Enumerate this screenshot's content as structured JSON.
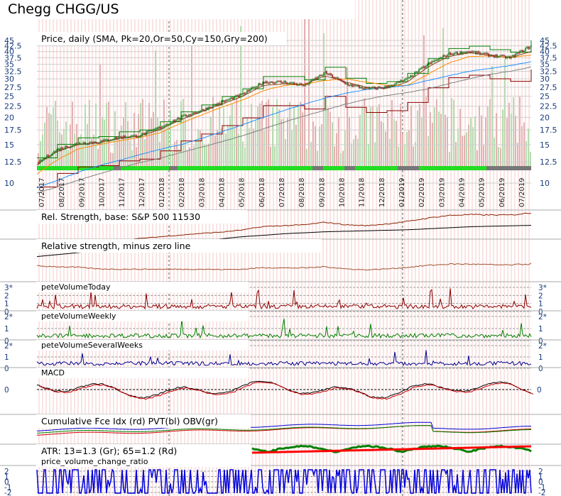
{
  "title": "Chegg CHGG/US",
  "panels": {
    "price_label": "Price, daily (SMA, Pk=20,Or=50,Cy=150,Gry=200)",
    "rs_label": "Rel. Strength, base: S&P 500 11530",
    "rs_zero_label": "Relative strength, minus zero line",
    "vol_today_label": "peteVolumeToday",
    "vol_weekly_label": "peteVolumeWeekly",
    "vol_several_label": "peteVolumeSeveralWeeks",
    "macd_label": "MACD",
    "cum_label": "Cumulative Fce Idx (rd) PVT(bl) OBV(gr)",
    "atr_label": "ATR: 13=1.3 (Gr); 65=1.2 (Rd)",
    "pvcr_label": "price_volume_change_ratio"
  },
  "colors": {
    "price_up": "#1a7a1a",
    "price_down": "#8b1a1a",
    "sma20": "#8b4513",
    "sma50": "#ff8c00",
    "sma150": "#1e90ff",
    "sma200": "#808080",
    "channel_hi": "#008000",
    "channel_lo": "#8b0000",
    "rs": "#8b2500",
    "rs_zero": "#a0522d",
    "vol_today": "#8b0000",
    "vol_weekly": "#008000",
    "vol_several": "#00008b",
    "macd": "#000000",
    "macd_signal": "#cc0000",
    "cum_fce": "#cc0000",
    "cum_pvt": "#0000cc",
    "cum_obv": "#008000",
    "atr13": "#008000",
    "atr65": "#ff0000",
    "pvcr": "#0000dd",
    "axis_text": "#1a3a7a",
    "grid_pink": "#f4c8c8"
  },
  "chart_data": {
    "type": "line",
    "symbol": "CHGG/US",
    "x_ticks": [
      "07/2017",
      "08/2017",
      "09/2017",
      "10/2017",
      "11/2017",
      "12/2017",
      "01/2018",
      "02/2018",
      "03/2018",
      "04/2018",
      "05/2018",
      "06/2018",
      "07/2018",
      "08/2018",
      "09/2018",
      "10/2018",
      "11/2018",
      "12/2018",
      "01/2019",
      "02/2019",
      "03/2019",
      "04/2019",
      "05/2019",
      "06/2019",
      "07/2019"
    ],
    "price_axis": {
      "scale": "log",
      "ylim": [
        10,
        45
      ],
      "ticks": [
        "45",
        "42.5",
        "40",
        "37.5",
        "35",
        "32.5",
        "30",
        "27.5",
        "25",
        "22.5",
        "20",
        "17.5",
        "15",
        "12.5",
        "10"
      ]
    },
    "series": [
      {
        "name": "Price",
        "x": [
          "07/2017",
          "08/2017",
          "09/2017",
          "10/2017",
          "11/2017",
          "12/2017",
          "01/2018",
          "02/2018",
          "03/2018",
          "04/2018",
          "05/2018",
          "06/2018",
          "07/2018",
          "08/2018",
          "09/2018",
          "10/2018",
          "11/2018",
          "12/2018",
          "01/2019",
          "02/2019",
          "03/2019",
          "04/2019",
          "05/2019",
          "06/2019",
          "07/2019"
        ],
        "values": [
          12.3,
          14.2,
          15.2,
          15.4,
          16.2,
          16.5,
          18.0,
          20.0,
          21.5,
          23.5,
          25.5,
          29.0,
          29.0,
          28.0,
          32.0,
          28.5,
          27.0,
          27.5,
          30.0,
          35.0,
          39.0,
          40.0,
          38.5,
          37.5,
          42.5
        ]
      },
      {
        "name": "SMA 20",
        "values": [
          12.1,
          14.0,
          15.0,
          15.3,
          16.0,
          16.4,
          17.6,
          19.5,
          21.2,
          23.0,
          25.0,
          28.0,
          28.5,
          28.3,
          31.0,
          29.0,
          27.5,
          27.2,
          29.0,
          34.0,
          38.0,
          39.5,
          38.5,
          37.5,
          40.0
        ]
      },
      {
        "name": "SMA 50",
        "values": [
          11.0,
          12.8,
          14.3,
          15.0,
          15.6,
          16.2,
          17.0,
          18.8,
          20.5,
          22.3,
          24.0,
          26.5,
          28.0,
          28.4,
          29.5,
          30.0,
          29.0,
          28.0,
          28.0,
          31.5,
          35.5,
          38.0,
          38.2,
          37.7,
          38.5
        ]
      },
      {
        "name": "SMA 150",
        "values": [
          9.5,
          10.3,
          11.2,
          12.0,
          12.7,
          13.5,
          14.3,
          15.0,
          16.0,
          17.2,
          18.5,
          20.0,
          21.5,
          23.0,
          24.5,
          25.8,
          26.8,
          27.5,
          28.0,
          29.5,
          31.0,
          32.5,
          33.5,
          34.5,
          36.0
        ]
      },
      {
        "name": "SMA 200",
        "values": [
          9.0,
          9.6,
          10.3,
          11.0,
          11.7,
          12.4,
          13.0,
          13.8,
          14.6,
          15.5,
          16.5,
          17.7,
          19.0,
          20.3,
          21.6,
          23.0,
          24.2,
          25.2,
          26.0,
          27.0,
          28.5,
          30.0,
          31.5,
          32.5,
          34.0
        ]
      }
    ],
    "indicators": {
      "rel_strength": {
        "values": [
          0.3,
          0.32,
          0.34,
          0.33,
          0.36,
          0.4,
          0.44,
          0.48,
          0.52,
          0.55,
          0.6,
          0.68,
          0.7,
          0.72,
          0.78,
          0.72,
          0.7,
          0.74,
          0.8,
          0.88,
          0.94,
          0.96,
          0.95,
          0.95,
          1.0
        ]
      },
      "rs_baseline": {
        "values": [
          0.12,
          0.16,
          0.2,
          0.24,
          0.28,
          0.32,
          0.36,
          0.4,
          0.44,
          0.48,
          0.52,
          0.55,
          0.58,
          0.6,
          0.62,
          0.63,
          0.64,
          0.65,
          0.66,
          0.68,
          0.7,
          0.72,
          0.73,
          0.74,
          0.75
        ]
      },
      "vol_axis_ticks": [
        "3*",
        "2",
        "1",
        "0"
      ],
      "vol_axis_ticks_short": [
        "2*",
        "1",
        "0"
      ],
      "macd_axis_ticks": [
        "0"
      ],
      "pvcr_axis_ticks": [
        "2",
        "1",
        "0",
        "-1",
        "-2"
      ]
    }
  }
}
